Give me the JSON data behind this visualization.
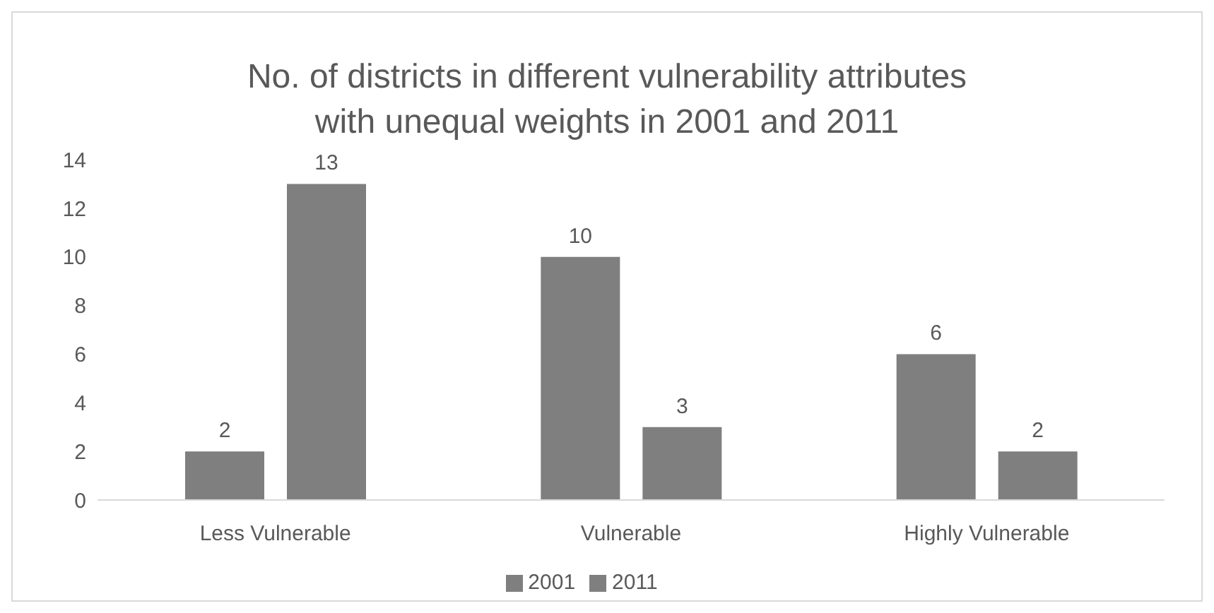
{
  "chart_data": {
    "type": "bar",
    "title": "No. of districts in different vulnerability attributes with unequal weights in 2001 and 2011",
    "categories": [
      "Less Vulnerable",
      "Vulnerable",
      "Highly Vulnerable"
    ],
    "series": [
      {
        "name": "2001",
        "color": "#7f7f7f",
        "values": [
          2,
          10,
          6
        ]
      },
      {
        "name": "2011",
        "color": "#7f7f7f",
        "values": [
          13,
          3,
          2
        ]
      }
    ],
    "ylim": [
      0,
      14
    ],
    "yticks": [
      0,
      2,
      4,
      6,
      8,
      10,
      12,
      14
    ],
    "grid": false,
    "legend": "bottom",
    "data_labels": true
  }
}
